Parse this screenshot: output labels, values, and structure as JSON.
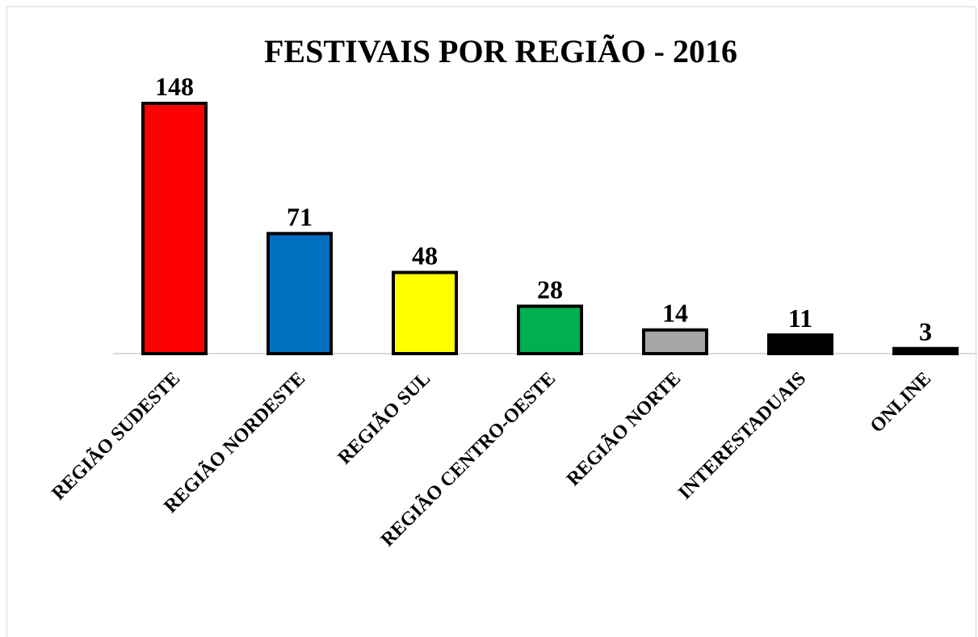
{
  "chart_data": {
    "type": "bar",
    "title": "FESTIVAIS POR REGIÃO - 2016",
    "categories": [
      "REGIÃO SUDESTE",
      "REGIÃO NORDESTE",
      "REGIÃO SUL",
      "REGIÃO CENTRO-OESTE",
      "REGIÃO NORTE",
      "INTERESTADUAIS",
      "ONLINE"
    ],
    "values": [
      148,
      71,
      48,
      28,
      14,
      11,
      3
    ],
    "colors": [
      "#ff0000",
      "#0070c0",
      "#ffff00",
      "#00b050",
      "#a6a6a6",
      "#000000",
      "#000000"
    ]
  }
}
